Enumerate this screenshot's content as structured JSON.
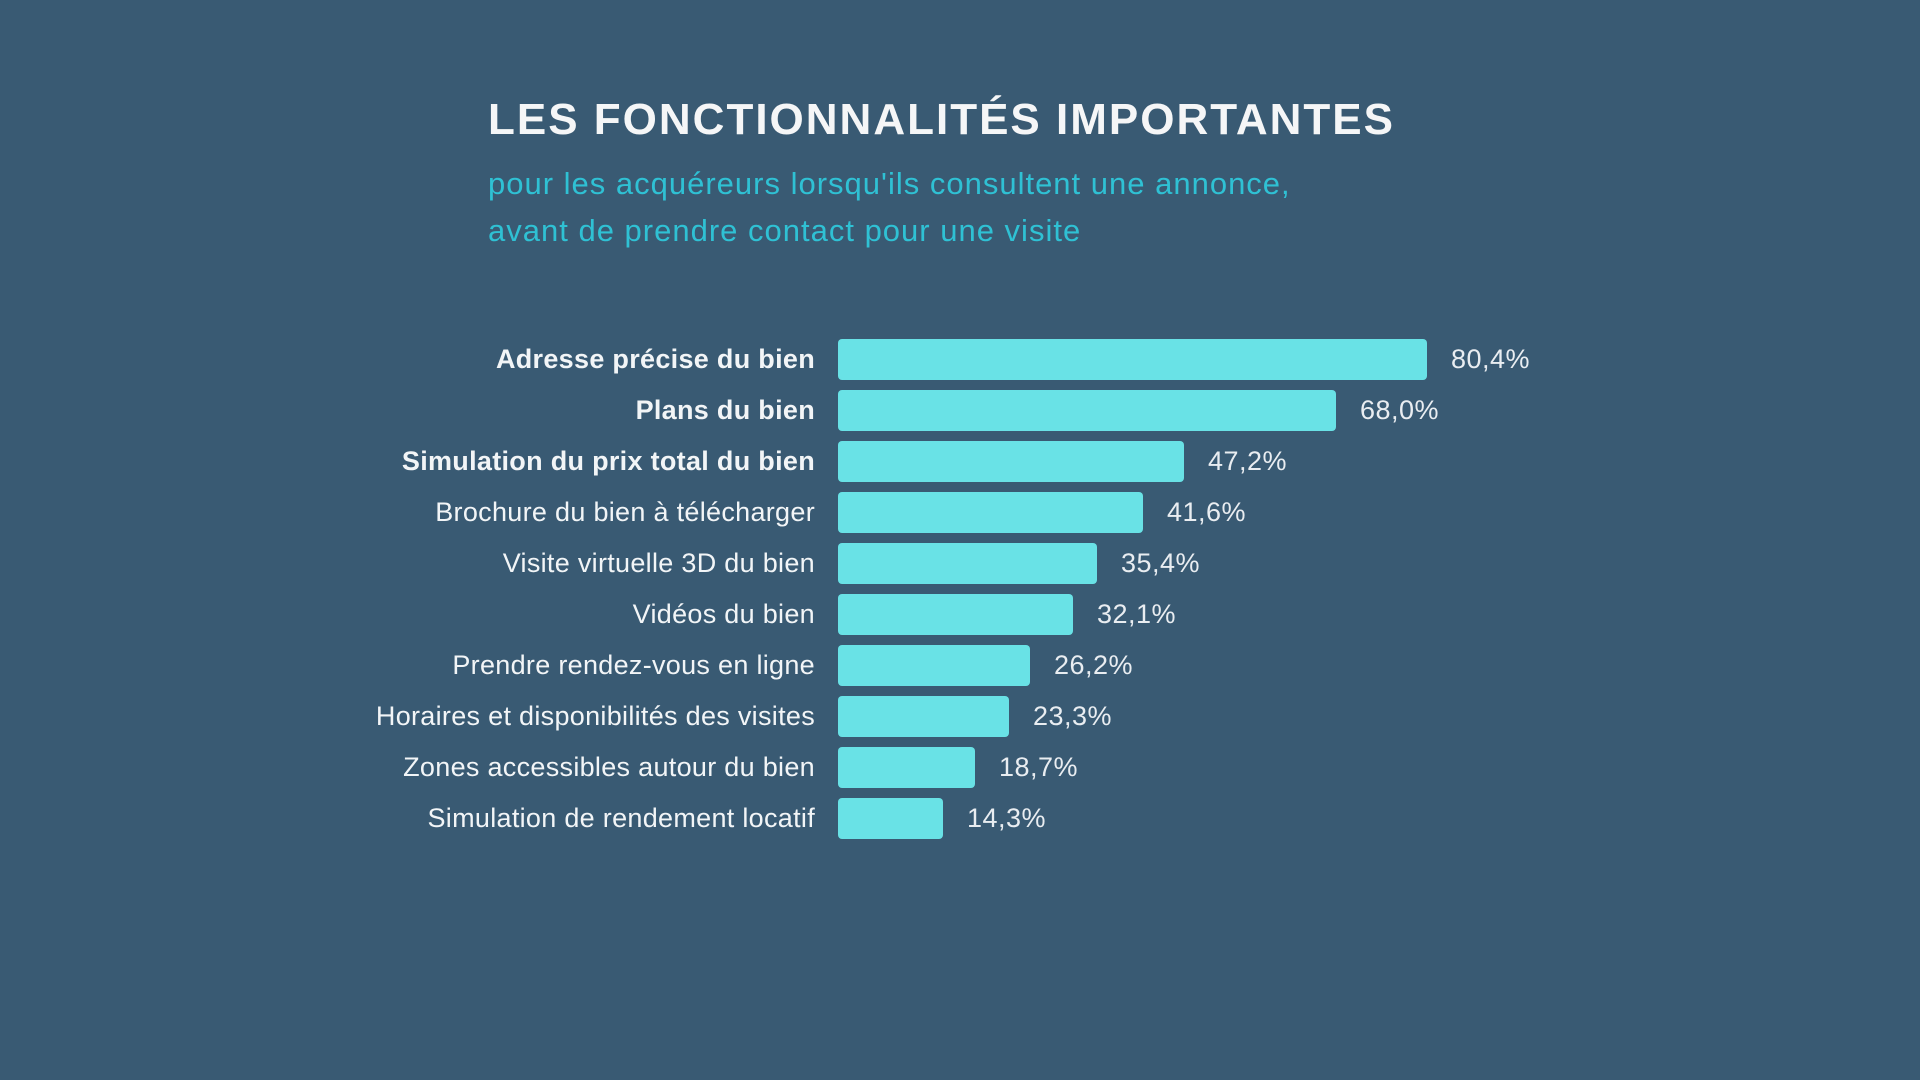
{
  "page": {
    "background_color": "#395a73"
  },
  "header": {
    "title": "LES FONCTIONNALITÉS IMPORTANTES",
    "subtitle_line1": "pour les acquéreurs lorsqu'ils consultent une annonce,",
    "subtitle_line2": "avant de prendre contact pour une visite",
    "title_color": "#f5f6f7",
    "subtitle_color": "#2fc1d4"
  },
  "chart_data": {
    "type": "bar",
    "orientation": "horizontal",
    "title": "LES FONCTIONNALITÉS IMPORTANTES",
    "subtitle": "pour les acquéreurs lorsqu'ils consultent une annonce, avant de prendre contact pour une visite",
    "categories": [
      "Adresse précise du bien",
      "Plans du bien",
      "Simulation du prix total du bien",
      "Brochure du bien à télécharger",
      "Visite virtuelle 3D du bien",
      "Vidéos du bien",
      "Prendre rendez-vous en ligne",
      "Horaires et disponibilités des visites",
      "Zones accessibles autour du bien",
      "Simulation de rendement locatif"
    ],
    "values": [
      80.4,
      68.0,
      47.2,
      41.6,
      35.4,
      32.1,
      26.2,
      23.3,
      18.7,
      14.3
    ],
    "value_labels": [
      "80,4%",
      "68,0%",
      "47,2%",
      "41,6%",
      "35,4%",
      "32,1%",
      "26,2%",
      "23,3%",
      "18,7%",
      "14,3%"
    ],
    "bold_categories": [
      true,
      true,
      true,
      false,
      false,
      false,
      false,
      false,
      false,
      false
    ],
    "unit": "%",
    "xlim": [
      0,
      100
    ],
    "grid": false,
    "legend": false,
    "axis_ticks": "none",
    "bar_color": "#69e2e6",
    "label_color": "#f2f5f7",
    "value_color": "#e9edf1"
  }
}
